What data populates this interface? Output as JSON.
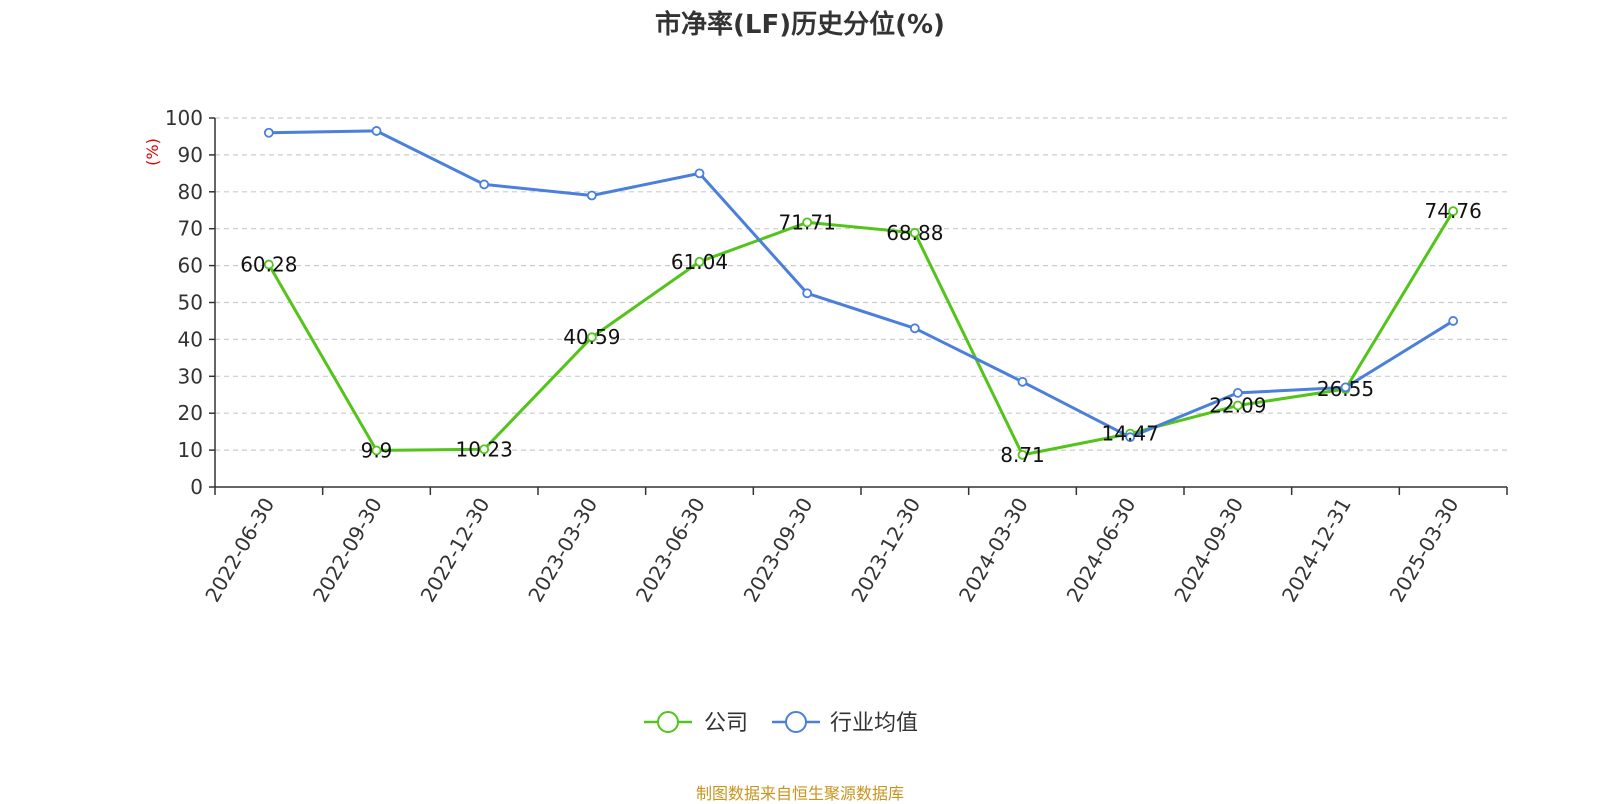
{
  "chart_data": {
    "type": "line",
    "title": "市净率(LF)历史分位(%)",
    "ylabel": "(%)",
    "ylim": [
      0,
      100
    ],
    "yticks": [
      0,
      10,
      20,
      30,
      40,
      50,
      60,
      70,
      80,
      90,
      100
    ],
    "categories": [
      "2022-06-30",
      "2022-09-30",
      "2022-12-30",
      "2023-03-30",
      "2023-06-30",
      "2023-09-30",
      "2023-12-30",
      "2024-03-30",
      "2024-06-30",
      "2024-09-30",
      "2024-12-31",
      "2025-03-30"
    ],
    "series": [
      {
        "name": "公司",
        "color": "#52c41a",
        "values": [
          60.28,
          9.9,
          10.23,
          40.59,
          61.04,
          71.71,
          68.88,
          8.71,
          14.47,
          22.09,
          26.55,
          74.76
        ],
        "labels": [
          "60.28",
          "9.9",
          "10.23",
          "40.59",
          "61.04",
          "71.71",
          "68.88",
          "8.71",
          "14.47",
          "22.09",
          "26.55",
          "74.76"
        ]
      },
      {
        "name": "行业均值",
        "color": "#4a7fdc",
        "values": [
          96.0,
          96.5,
          82.0,
          79.0,
          85.0,
          52.5,
          43.0,
          28.5,
          13.5,
          25.5,
          27.0,
          45.0
        ]
      }
    ],
    "grid": true,
    "legend": "bottom-center"
  },
  "footer": "制图数据来自恒生聚源数据库"
}
